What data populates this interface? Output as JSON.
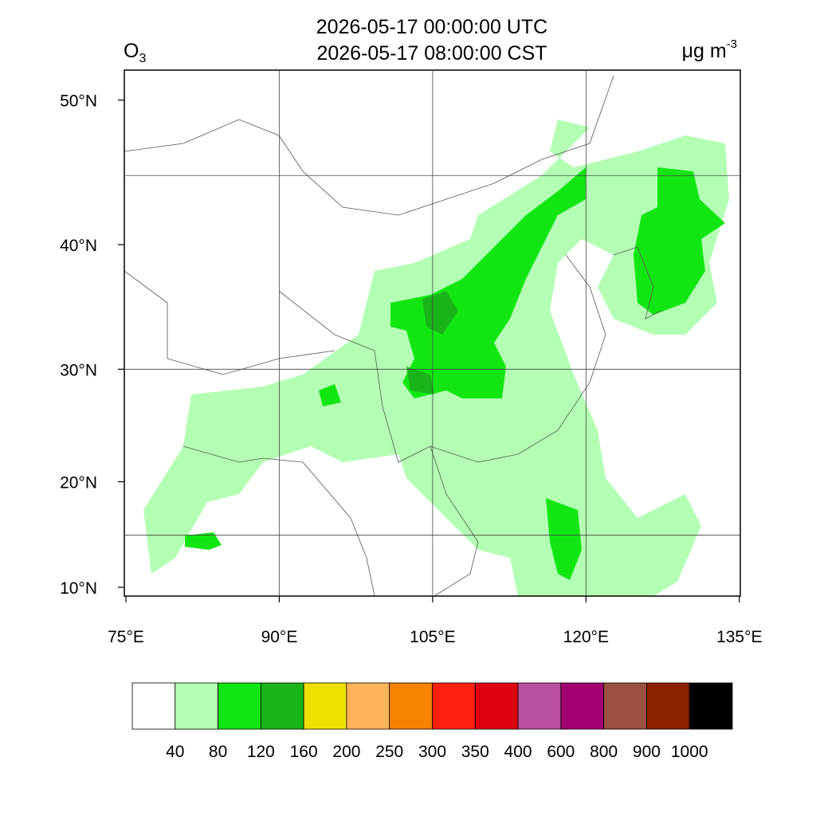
{
  "title": [
    "2026-05-17 00:00:00 UTC",
    "2026-05-17 08:00:00 CST"
  ],
  "variable": {
    "symbol": "O",
    "subscript": "3"
  },
  "units": {
    "text": "μg m",
    "superscript": "-3"
  },
  "lon_ticks": [
    {
      "value": 75,
      "label": "75°E"
    },
    {
      "value": 90,
      "label": "90°E"
    },
    {
      "value": 105,
      "label": "105°E"
    },
    {
      "value": 120,
      "label": "120°E"
    },
    {
      "value": 135,
      "label": "135°E"
    }
  ],
  "lat_ticks": [
    {
      "value": 10,
      "label": "10°N"
    },
    {
      "value": 20,
      "label": "20°N"
    },
    {
      "value": 30,
      "label": "30°N"
    },
    {
      "value": 40,
      "label": "40°N"
    },
    {
      "value": 50,
      "label": "50°N"
    }
  ],
  "colorbar": {
    "levels": [
      40,
      80,
      120,
      160,
      200,
      250,
      300,
      350,
      400,
      600,
      800,
      900,
      1000
    ],
    "colors": [
      "#ffffff",
      "#b3ffb3",
      "#12e612",
      "#18b418",
      "#f0e000",
      "#ffb45a",
      "#f58200",
      "#ff2010",
      "#dc0010",
      "#b950a0",
      "#a00070",
      "#9a5040",
      "#8c2000",
      "#000000"
    ]
  }
}
